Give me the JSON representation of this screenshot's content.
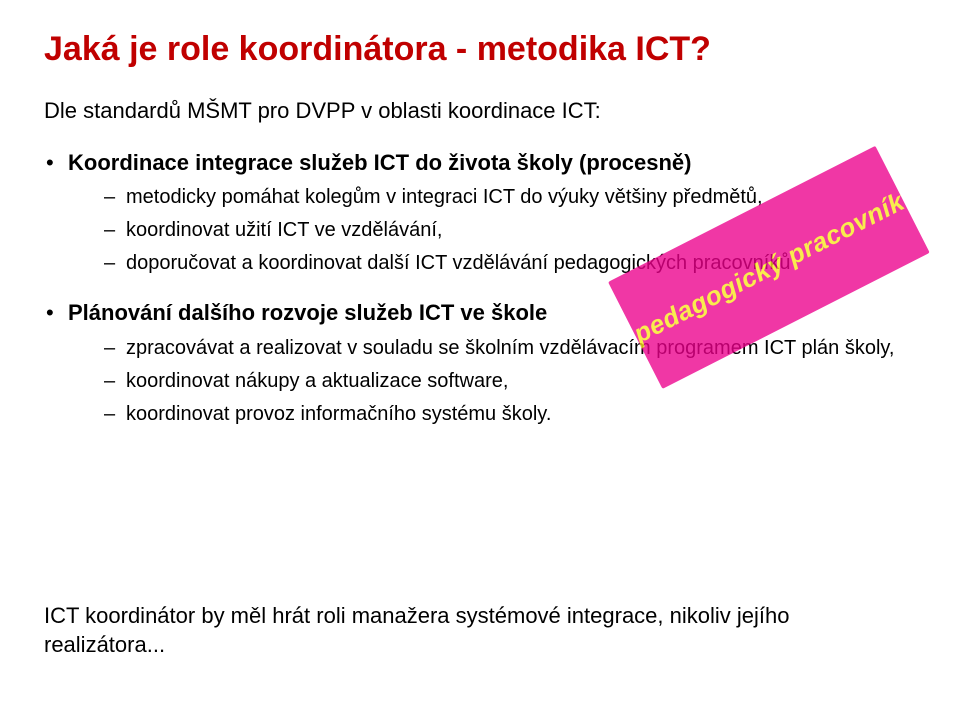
{
  "slide": {
    "title": "Jaká je role koordinátora - metodika ICT?",
    "title_color": "#c00000",
    "intro": "Dle standardů MŠMT pro DVPP v oblasti koordinace ICT:",
    "bullets": [
      {
        "text": "Koordinace integrace služeb ICT do života školy (procesně)",
        "sub": [
          "metodicky pomáhat kolegům v integraci ICT do výuky většiny předmětů,",
          "koordinovat užití ICT ve vzdělávání,",
          "doporučovat a koordinovat další ICT vzdělávání pedagogických pracovníků"
        ]
      },
      {
        "text": "Plánování dalšího rozvoje služeb ICT ve škole",
        "sub": [
          "zpracovávat a realizovat v souladu se školním vzdělávacím programem ICT plán školy,",
          "koordinovat nákupy a aktualizace software,",
          "koordinovat provoz informačního systému školy."
        ]
      }
    ],
    "callout": {
      "text": "pedagogický pracovník",
      "bg_color": "#ec008c",
      "text_color": "#f8e71c",
      "rotation_deg": -27,
      "opacity": 0.78
    },
    "footer": "ICT koordinátor by měl hrát roli manažera systémové integrace, nikoliv jejího realizátora..."
  },
  "colors": {
    "background": "#ffffff",
    "body_text": "#000000"
  },
  "typography": {
    "family": "Arial",
    "title_pt": 34,
    "body_pt": 22,
    "sub_pt": 20,
    "callout_pt": 26
  }
}
